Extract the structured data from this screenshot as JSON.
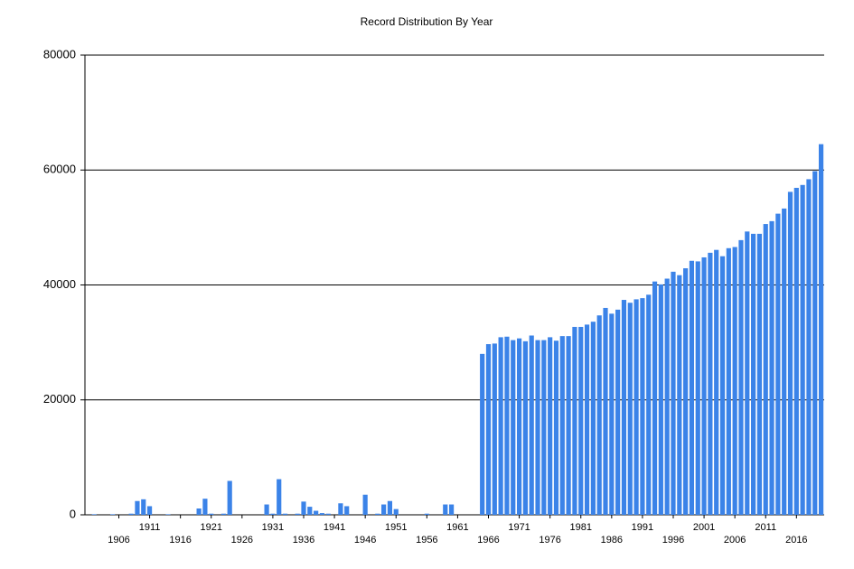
{
  "chart_data": {
    "type": "bar",
    "title": "Record Distribution By Year",
    "categories": [
      null,
      null,
      null,
      null,
      null,
      "1906",
      null,
      null,
      null,
      null,
      "1911",
      null,
      null,
      null,
      null,
      "1916",
      null,
      null,
      null,
      null,
      "1921",
      null,
      null,
      null,
      null,
      "1926",
      null,
      null,
      null,
      null,
      "1931",
      null,
      null,
      null,
      null,
      "1936",
      null,
      null,
      null,
      null,
      "1941",
      null,
      null,
      null,
      null,
      "1946",
      null,
      null,
      null,
      null,
      "1951",
      null,
      null,
      null,
      null,
      "1956",
      null,
      null,
      null,
      null,
      "1961",
      null,
      null,
      null,
      null,
      "1966",
      null,
      null,
      null,
      null,
      "1971",
      null,
      null,
      null,
      null,
      "1976",
      null,
      null,
      null,
      null,
      "1981",
      null,
      null,
      null,
      null,
      "1986",
      null,
      null,
      null,
      null,
      "1991",
      null,
      null,
      null,
      null,
      "1996",
      null,
      null,
      null,
      null,
      "2001",
      null,
      null,
      null,
      null,
      "2006",
      null,
      null,
      null,
      null,
      "2011",
      null,
      null,
      null,
      null,
      "2016",
      null,
      null,
      null,
      null
    ],
    "values": [
      0,
      100,
      0,
      0,
      100,
      0,
      0,
      200,
      2400,
      2700,
      1500,
      0,
      0,
      100,
      0,
      0,
      0,
      0,
      1100,
      2800,
      200,
      0,
      200,
      5900,
      0,
      0,
      0,
      0,
      0,
      1800,
      200,
      6200,
      200,
      0,
      200,
      2300,
      1400,
      700,
      300,
      200,
      0,
      2000,
      1500,
      0,
      0,
      3500,
      0,
      200,
      1800,
      2400,
      1000,
      0,
      0,
      0,
      0,
      200,
      0,
      0,
      1800,
      1800,
      0,
      0,
      0,
      0,
      28000,
      29700,
      29800,
      30900,
      31000,
      30400,
      30700,
      30200,
      31200,
      30400,
      30400,
      30900,
      30300,
      31100,
      31100,
      32700,
      32700,
      33100,
      33600,
      34700,
      36000,
      35000,
      35700,
      37400,
      36900,
      37500,
      37700,
      38300,
      40600,
      40100,
      41100,
      42300,
      41700,
      42900,
      44200,
      44100,
      44800,
      45600,
      46100,
      45000,
      46400,
      46600,
      47800,
      49300,
      48900,
      48900,
      50600,
      51100,
      52400,
      53300,
      56200,
      56900,
      57400,
      58400,
      59800,
      64500
    ],
    "color": "#3b83e8",
    "ylim": [
      0,
      80000
    ],
    "yticks": [
      0,
      20000,
      40000,
      60000,
      80000
    ],
    "grid": true
  }
}
